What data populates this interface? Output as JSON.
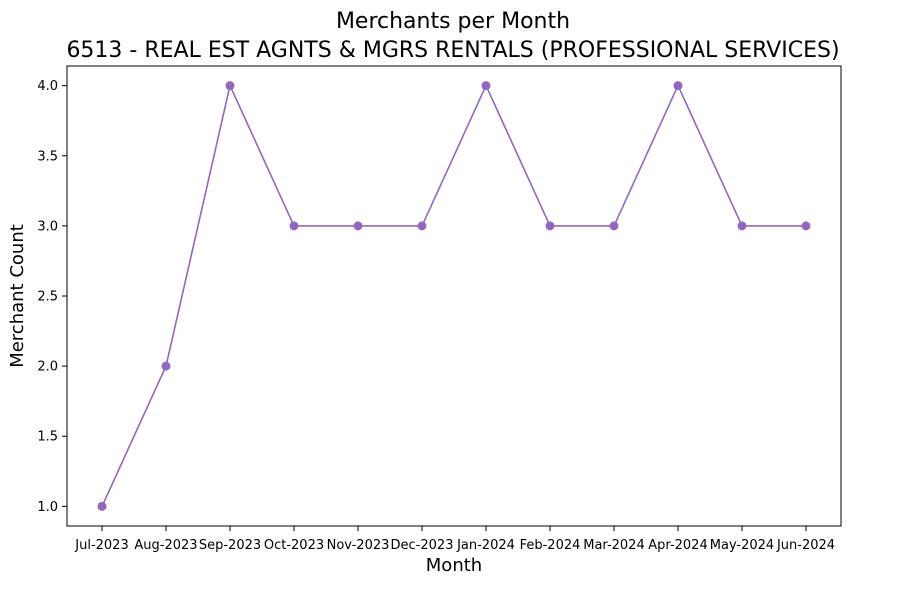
{
  "chart_data": {
    "type": "line",
    "title": "Merchants per Month",
    "subtitle": "6513 - REAL EST AGNTS & MGRS RENTALS (PROFESSIONAL SERVICES)",
    "xlabel": "Month",
    "ylabel": "Merchant Count",
    "categories": [
      "Jul-2023",
      "Aug-2023",
      "Sep-2023",
      "Oct-2023",
      "Nov-2023",
      "Dec-2023",
      "Jan-2024",
      "Feb-2024",
      "Mar-2024",
      "Apr-2024",
      "May-2024",
      "Jun-2024"
    ],
    "series": [
      {
        "values": [
          1,
          2,
          4,
          3,
          3,
          3,
          4,
          3,
          3,
          4,
          3,
          3
        ],
        "color": "#9467bd"
      }
    ],
    "ylim": [
      0.86,
      4.14
    ],
    "yticks": [
      1.0,
      1.5,
      2.0,
      2.5,
      3.0,
      3.5,
      4.0
    ],
    "grid": false,
    "marker": "circle"
  }
}
